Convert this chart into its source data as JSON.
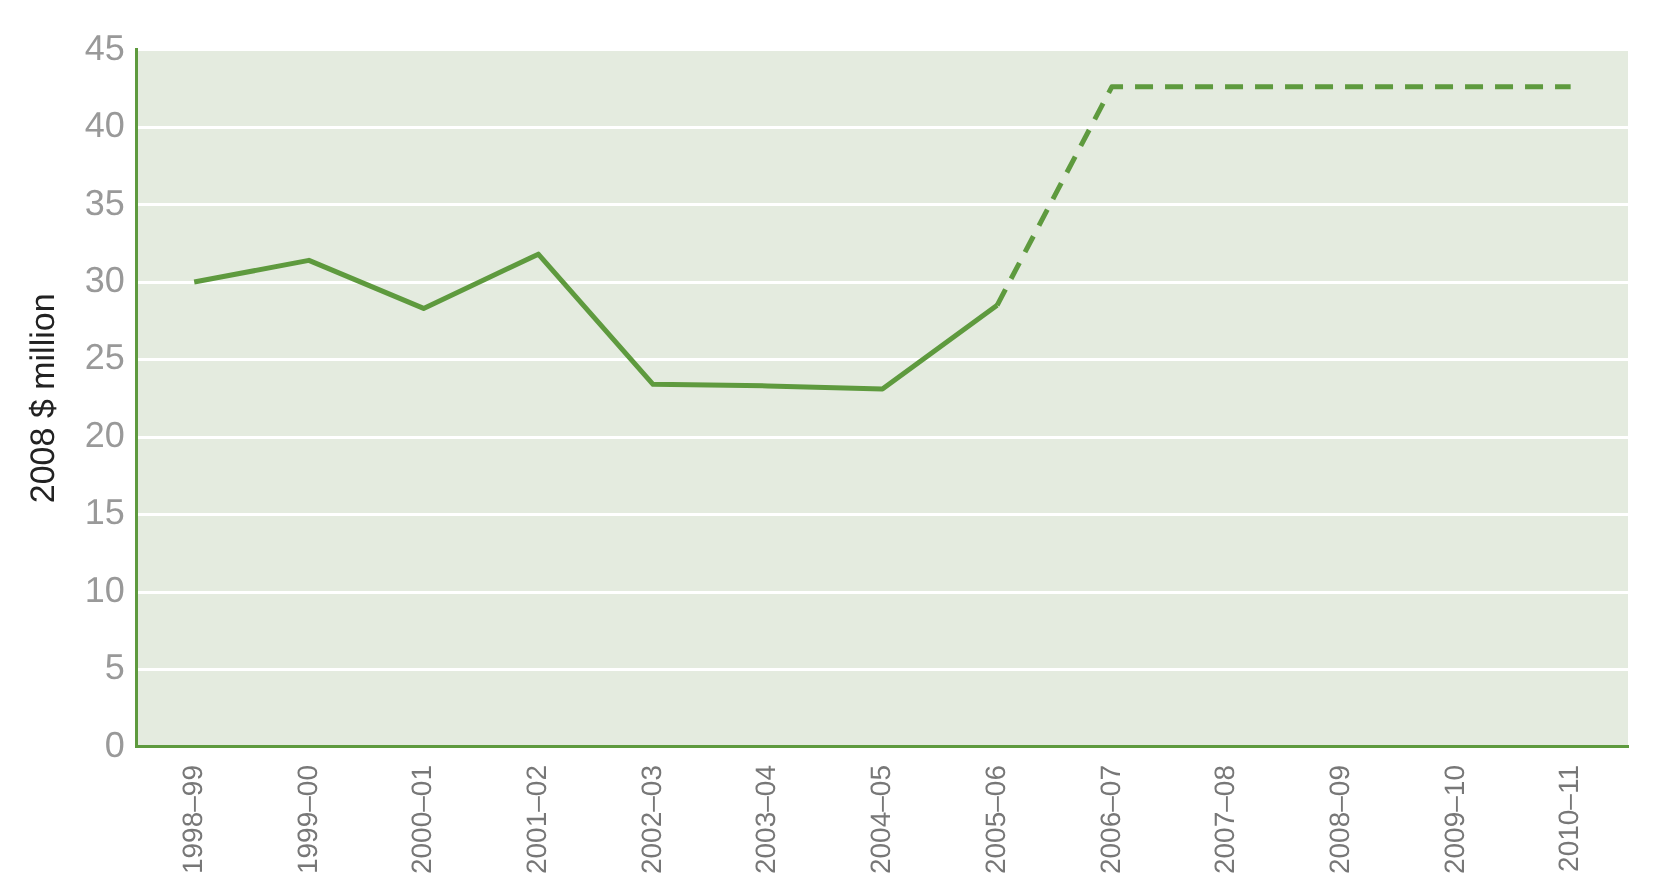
{
  "chart_data": {
    "type": "line",
    "ylabel": "2008 $ million",
    "categories": [
      "1998–99",
      "1999–00",
      "2000–01",
      "2001–02",
      "2002–03",
      "2003–04",
      "2004–05",
      "2005–06",
      "2006–07",
      "2007–08",
      "2008–09",
      "2009–10",
      "2010–11"
    ],
    "series": [
      {
        "color": "#5e9a3e",
        "line_style": "solid",
        "values": [
          30,
          31.4,
          28.3,
          31.8,
          23.4,
          23.3,
          23.1,
          28.5,
          null,
          null,
          null,
          null,
          null
        ]
      },
      {
        "color": "#5e9a3e",
        "line_style": "dashed",
        "values": [
          null,
          null,
          null,
          null,
          null,
          null,
          null,
          28.5,
          42.6,
          42.6,
          42.6,
          42.6,
          42.6
        ]
      }
    ],
    "ylim": [
      0,
      45
    ],
    "yticks": [
      0,
      5,
      10,
      15,
      20,
      25,
      30,
      35,
      40,
      45
    ],
    "grid": "y",
    "legend": false,
    "marker": "none"
  }
}
